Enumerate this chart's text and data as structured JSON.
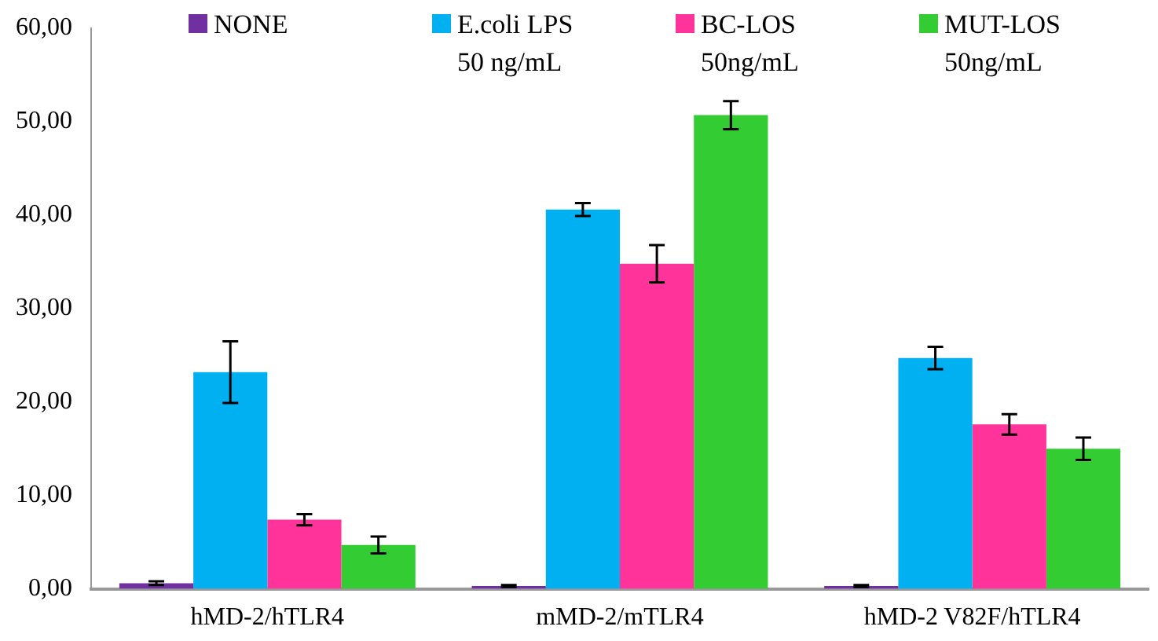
{
  "chart_data": {
    "type": "bar",
    "categories": [
      "hMD-2/hTLR4",
      "mMD-2/mTLR4",
      "hMD-2 V82F/hTLR4"
    ],
    "series": [
      {
        "name": "NONE",
        "color": "#7030a0",
        "values": [
          0.6,
          0.3,
          0.3
        ],
        "errors": [
          0.2,
          0.1,
          0.1
        ]
      },
      {
        "name": "E.coli LPS\n50 ng/mL",
        "color": "#00b0f0",
        "values": [
          23.2,
          40.6,
          24.7
        ],
        "errors": [
          3.3,
          0.7,
          1.2
        ]
      },
      {
        "name": "BC-LOS\n50ng/mL",
        "color": "#ff3399",
        "values": [
          7.4,
          34.8,
          17.6
        ],
        "errors": [
          0.6,
          2.0,
          1.1
        ]
      },
      {
        "name": "MUT-LOS\n50ng/mL",
        "color": "#33cc33",
        "values": [
          4.7,
          50.7,
          15.0
        ],
        "errors": [
          0.9,
          1.5,
          1.2
        ]
      }
    ],
    "ylim": [
      0,
      60
    ],
    "yticks": [
      {
        "value": 0,
        "label": "0,00"
      },
      {
        "value": 10,
        "label": "10,00"
      },
      {
        "value": 20,
        "label": "20,00"
      },
      {
        "value": 30,
        "label": "30,00"
      },
      {
        "value": 40,
        "label": "40,00"
      },
      {
        "value": 50,
        "label": "50,00"
      },
      {
        "value": 60,
        "label": "60,00"
      }
    ],
    "grid": false,
    "legend": "top"
  }
}
